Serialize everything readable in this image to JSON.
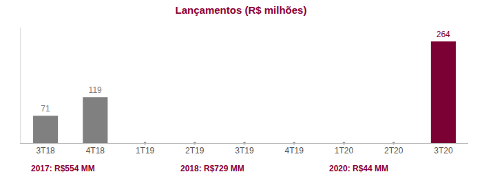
{
  "chart_data": {
    "type": "bar",
    "title": "Lançamentos (R$ milhões)",
    "categories": [
      "3T18",
      "4T18",
      "1T19",
      "2T19",
      "3T19",
      "4T19",
      "1T20",
      "2T20",
      "3T20"
    ],
    "values": [
      71,
      119,
      0,
      0,
      0,
      0,
      0,
      0,
      264
    ],
    "value_labels": [
      "71",
      "119",
      null,
      null,
      null,
      null,
      null,
      null,
      "264"
    ],
    "colors": [
      "#808080",
      "#808080",
      "#808080",
      "#808080",
      "#808080",
      "#808080",
      "#808080",
      "#808080",
      "#7B0033"
    ],
    "ylim": [
      0,
      300
    ],
    "grid": false,
    "data_labels": true,
    "tick_labels": "x",
    "annotations": [
      "2017: R$554 MM",
      "2018: R$729 MM",
      "2020: R$44 MM"
    ]
  }
}
